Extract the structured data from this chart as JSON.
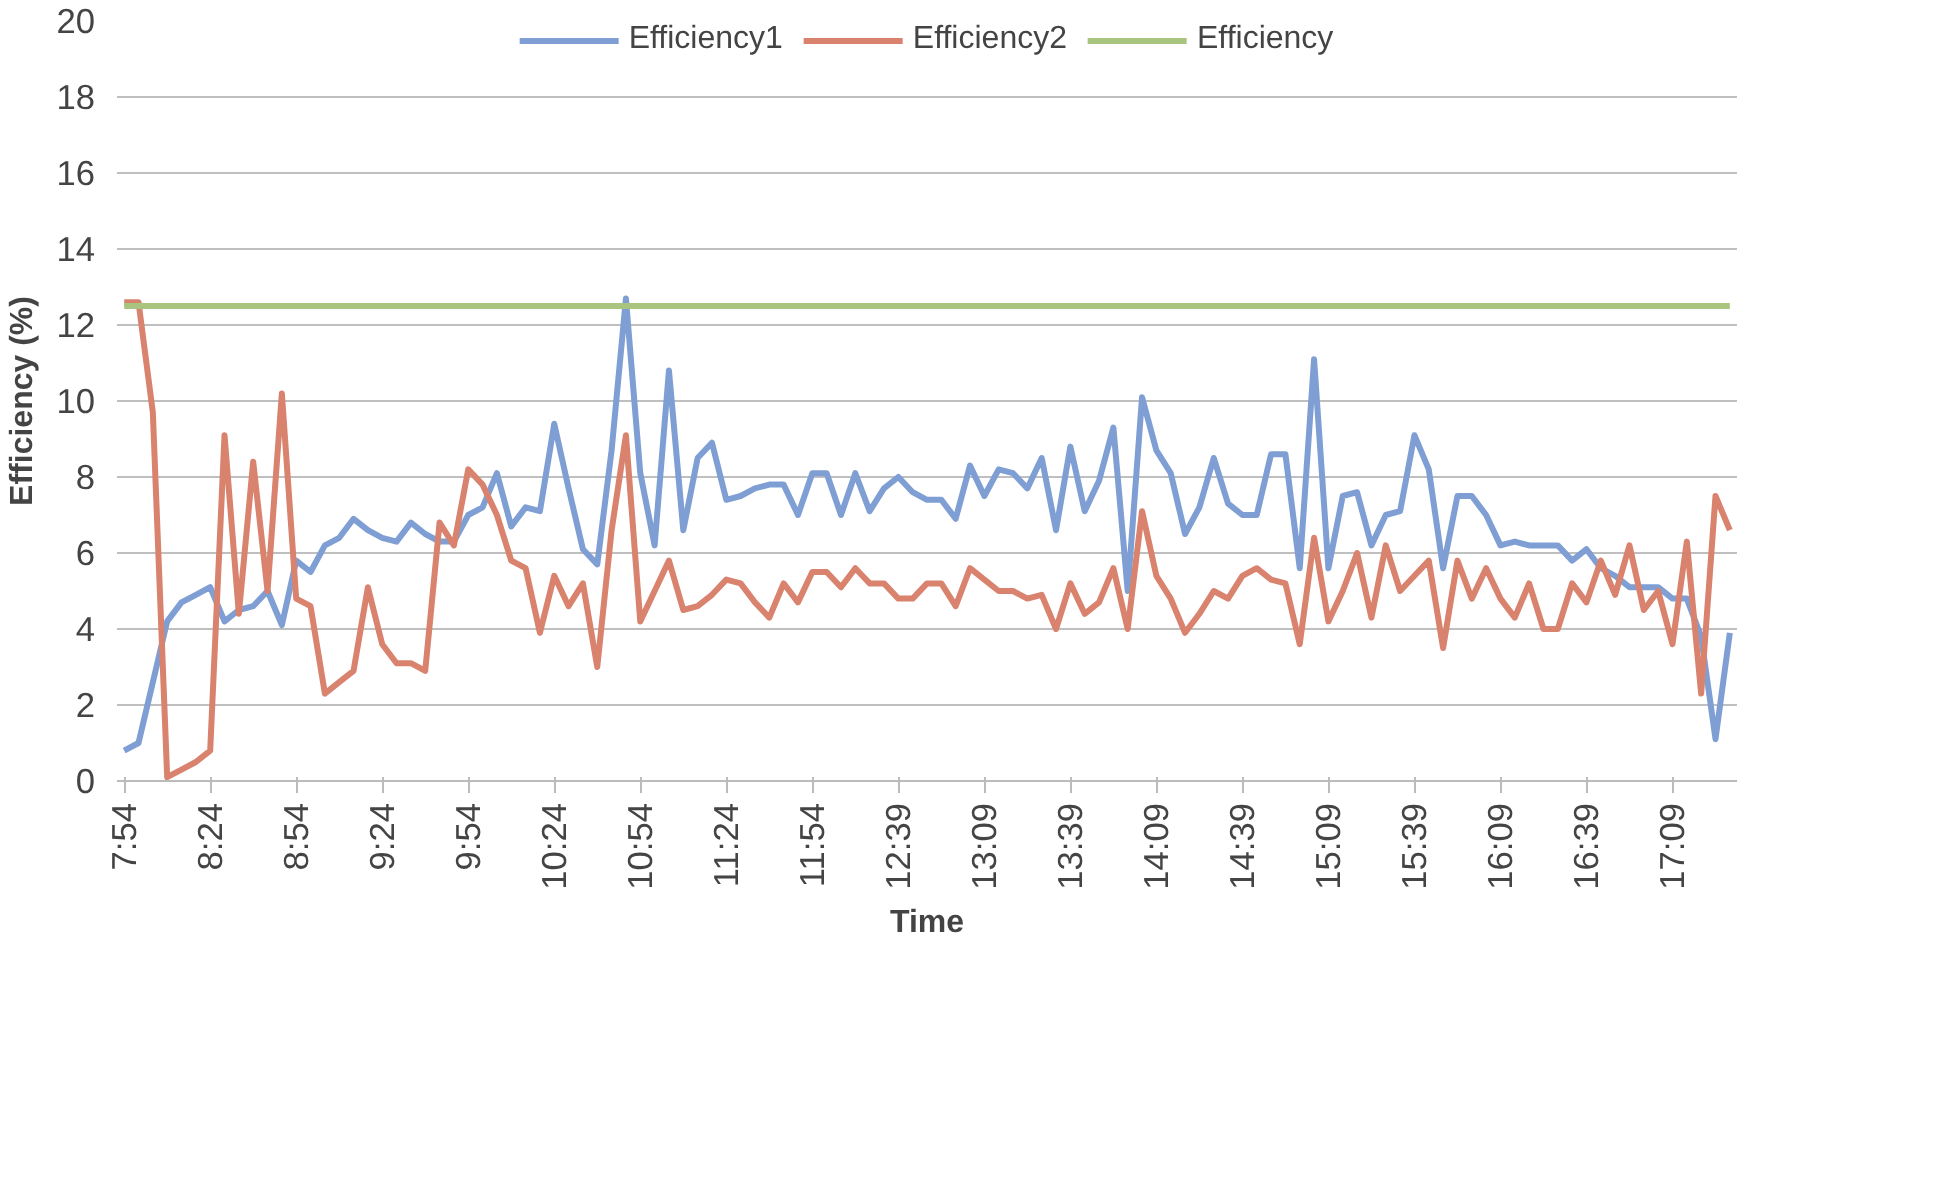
{
  "chart_data": {
    "type": "line",
    "xlabel": "Time",
    "ylabel": "Efficiency (%)",
    "categories": [
      "7:54",
      null,
      null,
      null,
      null,
      null,
      "8:24",
      null,
      null,
      null,
      null,
      null,
      "8:54",
      null,
      null,
      null,
      null,
      null,
      "9:24",
      null,
      null,
      null,
      null,
      null,
      "9:54",
      null,
      null,
      null,
      null,
      null,
      "10:24",
      null,
      null,
      null,
      null,
      null,
      "10:54",
      null,
      null,
      null,
      null,
      null,
      "11:24",
      null,
      null,
      null,
      null,
      null,
      "11:54",
      null,
      null,
      null,
      null,
      null,
      "12:39",
      null,
      null,
      null,
      null,
      null,
      "13:09",
      null,
      null,
      null,
      null,
      null,
      "13:39",
      null,
      null,
      null,
      null,
      null,
      "14:09",
      null,
      null,
      null,
      null,
      null,
      "14:39",
      null,
      null,
      null,
      null,
      null,
      "15:09",
      null,
      null,
      null,
      null,
      null,
      "15:39",
      null,
      null,
      null,
      null,
      null,
      "16:09",
      null,
      null,
      null,
      null,
      null,
      "16:39",
      null,
      null,
      null,
      null,
      null,
      "17:09",
      null,
      null,
      null,
      null
    ],
    "series": [
      {
        "name": "Efficiency1",
        "color": "#7f9fd4",
        "values": [
          0.8,
          1.0,
          2.6,
          4.2,
          4.7,
          4.9,
          5.1,
          4.2,
          4.5,
          4.6,
          5.0,
          4.1,
          5.8,
          5.5,
          6.2,
          6.4,
          6.9,
          6.6,
          6.4,
          6.3,
          6.8,
          6.5,
          6.3,
          6.3,
          7.0,
          7.2,
          8.1,
          6.7,
          7.2,
          7.1,
          9.4,
          7.7,
          6.1,
          5.7,
          8.7,
          12.7,
          8.1,
          6.2,
          10.8,
          6.6,
          8.5,
          8.9,
          7.4,
          7.5,
          7.7,
          7.8,
          7.8,
          7.0,
          8.1,
          8.1,
          7.0,
          8.1,
          7.1,
          7.7,
          8.0,
          7.6,
          7.4,
          7.4,
          6.9,
          8.3,
          7.5,
          8.2,
          8.1,
          7.7,
          8.5,
          6.6,
          8.8,
          7.1,
          7.9,
          9.3,
          5.0,
          10.1,
          8.7,
          8.1,
          6.5,
          7.2,
          8.5,
          7.3,
          7.0,
          7.0,
          8.6,
          8.6,
          5.6,
          11.1,
          5.6,
          7.5,
          7.6,
          6.2,
          7.0,
          7.1,
          9.1,
          8.2,
          5.6,
          7.5,
          7.5,
          7.0,
          6.2,
          6.3,
          6.2,
          6.2,
          6.2,
          5.8,
          6.1,
          5.6,
          5.4,
          5.1,
          5.1,
          5.1,
          4.8,
          4.8,
          3.8,
          1.1,
          3.9
        ]
      },
      {
        "name": "Efficiency2",
        "color": "#d9826e",
        "values": [
          12.6,
          12.6,
          9.7,
          0.1,
          0.3,
          0.5,
          0.8,
          9.1,
          4.4,
          8.4,
          5.0,
          10.2,
          4.8,
          4.6,
          2.3,
          2.6,
          2.9,
          5.1,
          3.6,
          3.1,
          3.1,
          2.9,
          6.8,
          6.2,
          8.2,
          7.8,
          7.0,
          5.8,
          5.6,
          3.9,
          5.4,
          4.6,
          5.2,
          3.0,
          6.6,
          9.1,
          4.2,
          5.0,
          5.8,
          4.5,
          4.6,
          4.9,
          5.3,
          5.2,
          4.7,
          4.3,
          5.2,
          4.7,
          5.5,
          5.5,
          5.1,
          5.6,
          5.2,
          5.2,
          4.8,
          4.8,
          5.2,
          5.2,
          4.6,
          5.6,
          5.3,
          5.0,
          5.0,
          4.8,
          4.9,
          4.0,
          5.2,
          4.4,
          4.7,
          5.6,
          4.0,
          7.1,
          5.4,
          4.8,
          3.9,
          4.4,
          5.0,
          4.8,
          5.4,
          5.6,
          5.3,
          5.2,
          3.6,
          6.4,
          4.2,
          5.0,
          6.0,
          4.3,
          6.2,
          5.0,
          5.4,
          5.8,
          3.5,
          5.8,
          4.8,
          5.6,
          4.8,
          4.3,
          5.2,
          4.0,
          4.0,
          5.2,
          4.7,
          5.8,
          4.9,
          6.2,
          4.5,
          5.0,
          3.6,
          6.3,
          2.3,
          7.5,
          6.6
        ]
      },
      {
        "name": "Efficiency",
        "color": "#a9c47f",
        "values": [
          12.5,
          12.5,
          12.5,
          12.5,
          12.5,
          12.5,
          12.5,
          12.5,
          12.5,
          12.5,
          12.5,
          12.5,
          12.5,
          12.5,
          12.5,
          12.5,
          12.5,
          12.5,
          12.5,
          12.5,
          12.5,
          12.5,
          12.5,
          12.5,
          12.5,
          12.5,
          12.5,
          12.5,
          12.5,
          12.5,
          12.5,
          12.5,
          12.5,
          12.5,
          12.5,
          12.5,
          12.5,
          12.5,
          12.5,
          12.5,
          12.5,
          12.5,
          12.5,
          12.5,
          12.5,
          12.5,
          12.5,
          12.5,
          12.5,
          12.5,
          12.5,
          12.5,
          12.5,
          12.5,
          12.5,
          12.5,
          12.5,
          12.5,
          12.5,
          12.5,
          12.5,
          12.5,
          12.5,
          12.5,
          12.5,
          12.5,
          12.5,
          12.5,
          12.5,
          12.5,
          12.5,
          12.5,
          12.5,
          12.5,
          12.5,
          12.5,
          12.5,
          12.5,
          12.5,
          12.5,
          12.5,
          12.5,
          12.5,
          12.5,
          12.5,
          12.5,
          12.5,
          12.5,
          12.5,
          12.5,
          12.5,
          12.5,
          12.5,
          12.5,
          12.5,
          12.5,
          12.5,
          12.5,
          12.5,
          12.5,
          12.5,
          12.5,
          12.5,
          12.5,
          12.5,
          12.5,
          12.5,
          12.5,
          12.5,
          12.5,
          12.5,
          12.5,
          12.5
        ]
      }
    ],
    "ylim": [
      0,
      20
    ],
    "yticks": [
      0,
      2,
      4,
      6,
      8,
      10,
      12,
      14,
      16,
      18,
      20
    ],
    "grid": "y",
    "legend": "top",
    "line_style": "solid",
    "marker": "none"
  }
}
